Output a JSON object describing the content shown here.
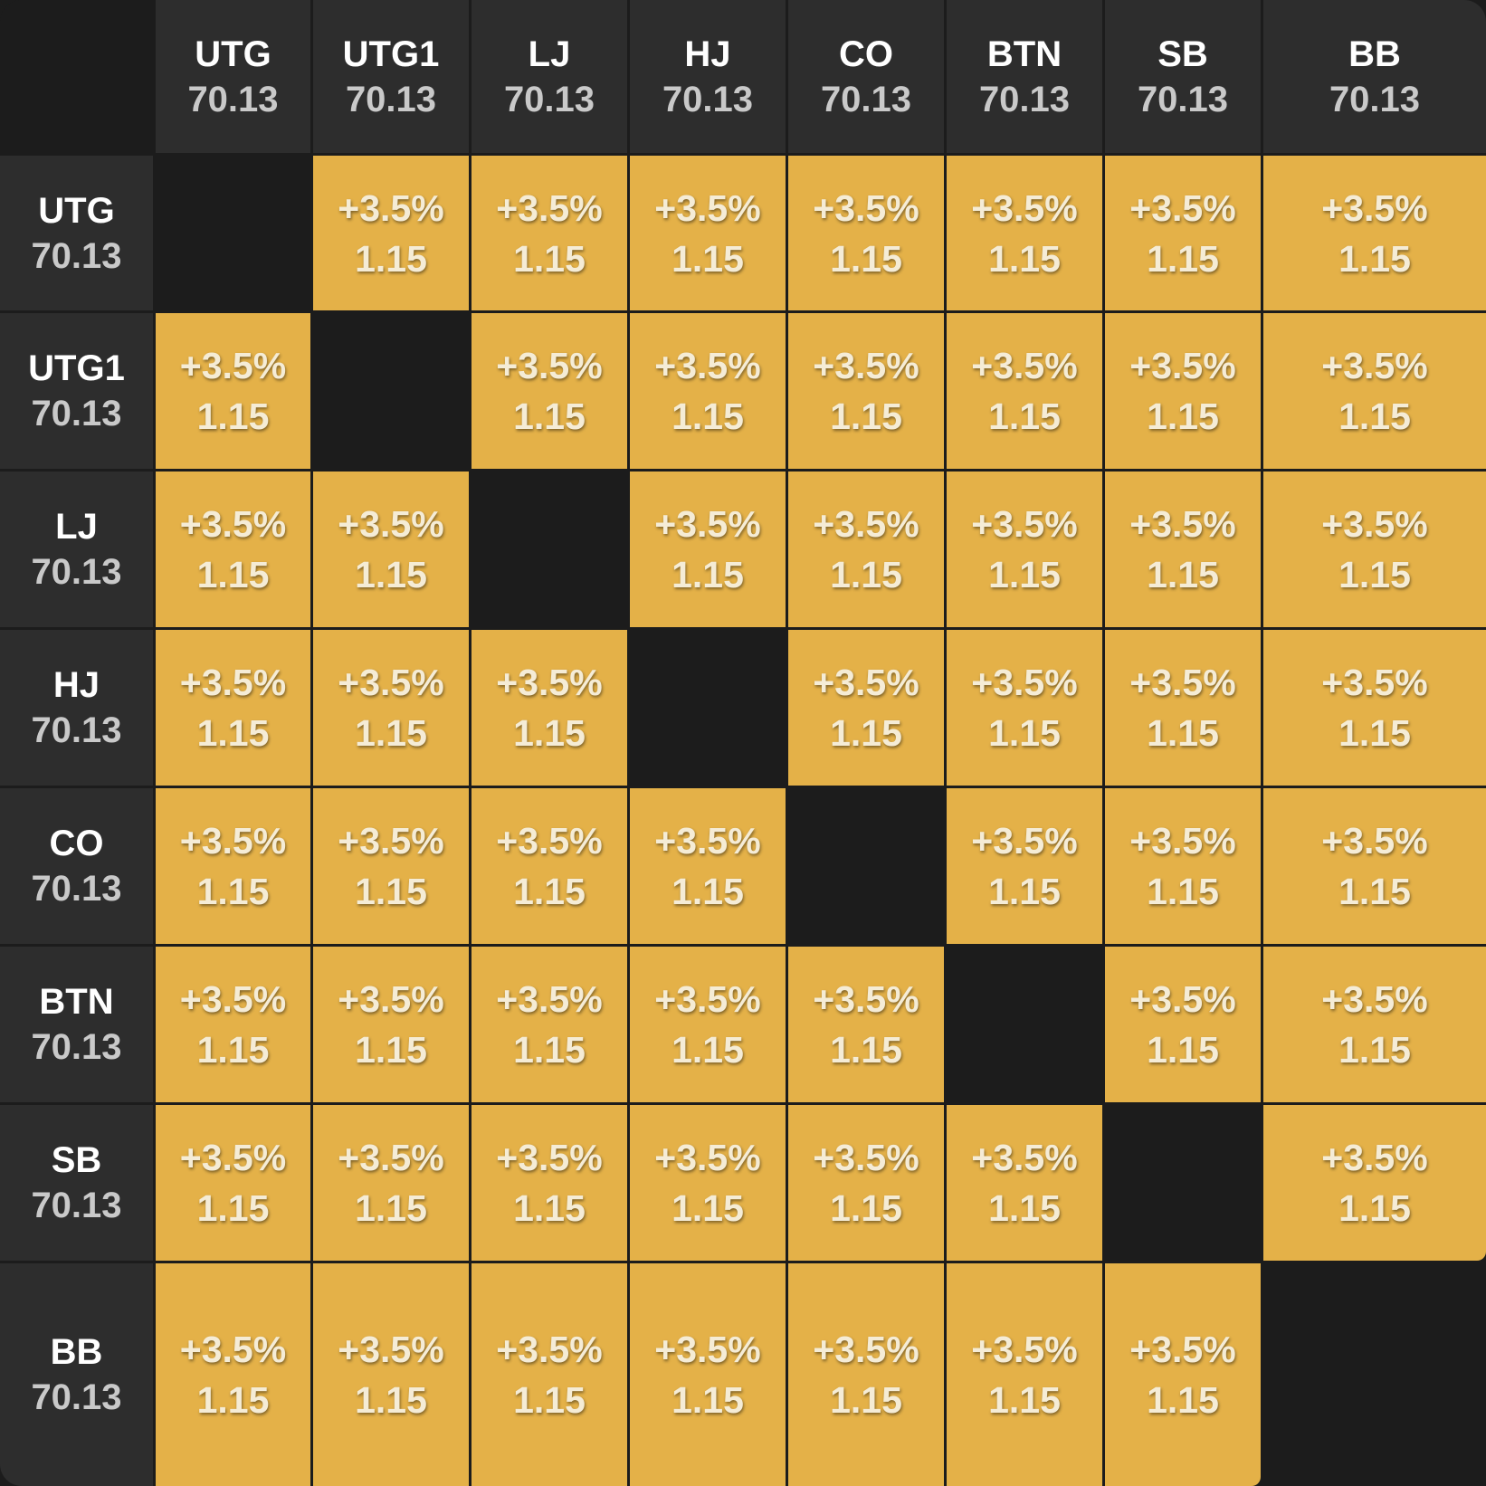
{
  "columns": [
    {
      "label": "UTG",
      "value": "70.13"
    },
    {
      "label": "UTG1",
      "value": "70.13"
    },
    {
      "label": "LJ",
      "value": "70.13"
    },
    {
      "label": "HJ",
      "value": "70.13"
    },
    {
      "label": "CO",
      "value": "70.13"
    },
    {
      "label": "BTN",
      "value": "70.13"
    },
    {
      "label": "SB",
      "value": "70.13"
    },
    {
      "label": "BB",
      "value": "70.13"
    }
  ],
  "rows": [
    {
      "label": "UTG",
      "value": "70.13"
    },
    {
      "label": "UTG1",
      "value": "70.13"
    },
    {
      "label": "LJ",
      "value": "70.13"
    },
    {
      "label": "HJ",
      "value": "70.13"
    },
    {
      "label": "CO",
      "value": "70.13"
    },
    {
      "label": "BTN",
      "value": "70.13"
    },
    {
      "label": "SB",
      "value": "70.13"
    },
    {
      "label": "BB",
      "value": "70.13"
    }
  ],
  "cells": [
    [
      null,
      {
        "pct": "+3.5%",
        "value": "1.15"
      },
      {
        "pct": "+3.5%",
        "value": "1.15"
      },
      {
        "pct": "+3.5%",
        "value": "1.15"
      },
      {
        "pct": "+3.5%",
        "value": "1.15"
      },
      {
        "pct": "+3.5%",
        "value": "1.15"
      },
      {
        "pct": "+3.5%",
        "value": "1.15"
      },
      {
        "pct": "+3.5%",
        "value": "1.15"
      }
    ],
    [
      {
        "pct": "+3.5%",
        "value": "1.15"
      },
      null,
      {
        "pct": "+3.5%",
        "value": "1.15"
      },
      {
        "pct": "+3.5%",
        "value": "1.15"
      },
      {
        "pct": "+3.5%",
        "value": "1.15"
      },
      {
        "pct": "+3.5%",
        "value": "1.15"
      },
      {
        "pct": "+3.5%",
        "value": "1.15"
      },
      {
        "pct": "+3.5%",
        "value": "1.15"
      }
    ],
    [
      {
        "pct": "+3.5%",
        "value": "1.15"
      },
      {
        "pct": "+3.5%",
        "value": "1.15"
      },
      null,
      {
        "pct": "+3.5%",
        "value": "1.15"
      },
      {
        "pct": "+3.5%",
        "value": "1.15"
      },
      {
        "pct": "+3.5%",
        "value": "1.15"
      },
      {
        "pct": "+3.5%",
        "value": "1.15"
      },
      {
        "pct": "+3.5%",
        "value": "1.15"
      }
    ],
    [
      {
        "pct": "+3.5%",
        "value": "1.15"
      },
      {
        "pct": "+3.5%",
        "value": "1.15"
      },
      {
        "pct": "+3.5%",
        "value": "1.15"
      },
      null,
      {
        "pct": "+3.5%",
        "value": "1.15"
      },
      {
        "pct": "+3.5%",
        "value": "1.15"
      },
      {
        "pct": "+3.5%",
        "value": "1.15"
      },
      {
        "pct": "+3.5%",
        "value": "1.15"
      }
    ],
    [
      {
        "pct": "+3.5%",
        "value": "1.15"
      },
      {
        "pct": "+3.5%",
        "value": "1.15"
      },
      {
        "pct": "+3.5%",
        "value": "1.15"
      },
      {
        "pct": "+3.5%",
        "value": "1.15"
      },
      null,
      {
        "pct": "+3.5%",
        "value": "1.15"
      },
      {
        "pct": "+3.5%",
        "value": "1.15"
      },
      {
        "pct": "+3.5%",
        "value": "1.15"
      }
    ],
    [
      {
        "pct": "+3.5%",
        "value": "1.15"
      },
      {
        "pct": "+3.5%",
        "value": "1.15"
      },
      {
        "pct": "+3.5%",
        "value": "1.15"
      },
      {
        "pct": "+3.5%",
        "value": "1.15"
      },
      {
        "pct": "+3.5%",
        "value": "1.15"
      },
      null,
      {
        "pct": "+3.5%",
        "value": "1.15"
      },
      {
        "pct": "+3.5%",
        "value": "1.15"
      }
    ],
    [
      {
        "pct": "+3.5%",
        "value": "1.15"
      },
      {
        "pct": "+3.5%",
        "value": "1.15"
      },
      {
        "pct": "+3.5%",
        "value": "1.15"
      },
      {
        "pct": "+3.5%",
        "value": "1.15"
      },
      {
        "pct": "+3.5%",
        "value": "1.15"
      },
      {
        "pct": "+3.5%",
        "value": "1.15"
      },
      null,
      {
        "pct": "+3.5%",
        "value": "1.15"
      }
    ],
    [
      {
        "pct": "+3.5%",
        "value": "1.15"
      },
      {
        "pct": "+3.5%",
        "value": "1.15"
      },
      {
        "pct": "+3.5%",
        "value": "1.15"
      },
      {
        "pct": "+3.5%",
        "value": "1.15"
      },
      {
        "pct": "+3.5%",
        "value": "1.15"
      },
      {
        "pct": "+3.5%",
        "value": "1.15"
      },
      {
        "pct": "+3.5%",
        "value": "1.15"
      },
      null
    ]
  ],
  "colors": {
    "cell_fill": "#e4b148",
    "header_fill": "#2d2d2d",
    "diagonal_fill": "#1c1c1c",
    "grid_line": "#1c1c1c"
  }
}
